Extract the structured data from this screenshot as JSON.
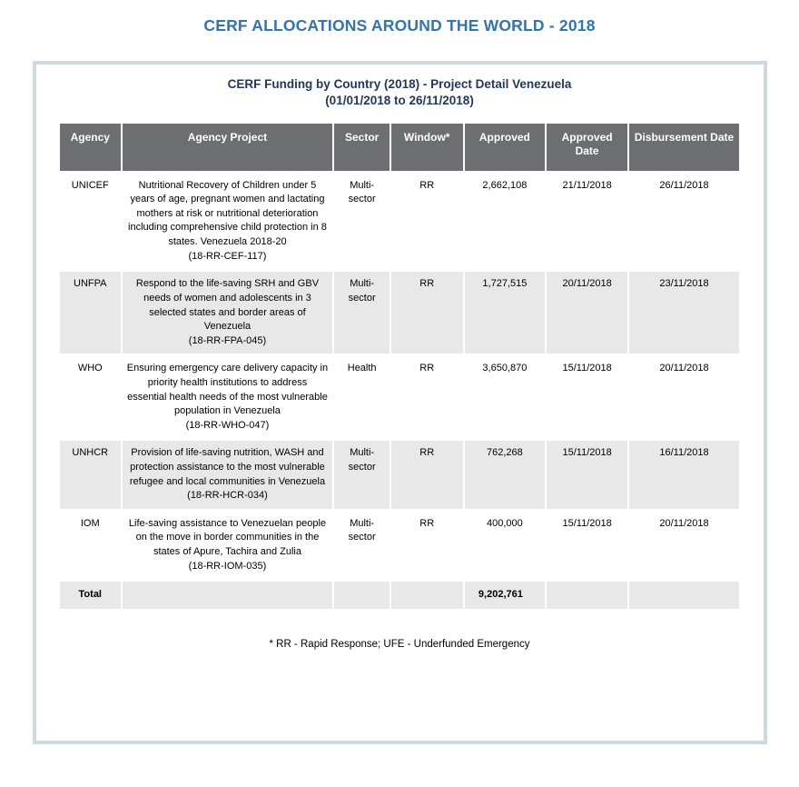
{
  "page_title": "CERF ALLOCATIONS AROUND THE WORLD - 2018",
  "report": {
    "title_line1": "CERF Funding by Country (2018) - Project Detail Venezuela",
    "title_line2": "(01/01/2018 to 26/11/2018)",
    "footnote": "* RR - Rapid Response; UFE - Underfunded Emergency"
  },
  "table": {
    "columns": [
      "Agency",
      "Agency Project",
      "Sector",
      "Window*",
      "Approved",
      "Approved Date",
      "Disbursement Date"
    ],
    "rows": [
      {
        "agency": "UNICEF",
        "project": "Nutritional Recovery of Children under 5 years of age, pregnant women and lactating mothers at risk or nutritional deterioration including comprehensive child protection in 8 states. Venezuela 2018-20",
        "code": "(18-RR-CEF-117)",
        "sector": "Multi-sector",
        "window": "RR",
        "approved": "2,662,108",
        "approved_date": "21/11/2018",
        "disbursement_date": "26/11/2018"
      },
      {
        "agency": "UNFPA",
        "project": "Respond to the life-saving SRH and GBV needs of women and adolescents in 3 selected states and border areas of Venezuela",
        "code": "(18-RR-FPA-045)",
        "sector": "Multi-sector",
        "window": "RR",
        "approved": "1,727,515",
        "approved_date": "20/11/2018",
        "disbursement_date": "23/11/2018"
      },
      {
        "agency": "WHO",
        "project": "Ensuring emergency care delivery capacity in priority health institutions to address essential health needs of the most vulnerable population in Venezuela",
        "code": "(18-RR-WHO-047)",
        "sector": "Health",
        "window": "RR",
        "approved": "3,650,870",
        "approved_date": "15/11/2018",
        "disbursement_date": "20/11/2018"
      },
      {
        "agency": "UNHCR",
        "project": "Provision of life-saving nutrition, WASH and protection assistance to the most vulnerable refugee and local communities in Venezuela",
        "code": "(18-RR-HCR-034)",
        "sector": "Multi-sector",
        "window": "RR",
        "approved": "762,268",
        "approved_date": "15/11/2018",
        "disbursement_date": "16/11/2018"
      },
      {
        "agency": "IOM",
        "project": "Life-saving assistance to Venezuelan people on the move in border communities in the states of Apure, Tachira and Zulia",
        "code": "(18-RR-IOM-035)",
        "sector": "Multi-sector",
        "window": "RR",
        "approved": "400,000",
        "approved_date": "15/11/2018",
        "disbursement_date": "20/11/2018"
      }
    ],
    "total": {
      "label": "Total",
      "approved": "9,202,761"
    }
  },
  "colors": {
    "page_title_blue": "#2e75b6",
    "report_title_navy": "#1f3864",
    "header_bg": "#6d6e71",
    "header_text": "#ffffff",
    "row_alt_bg": "#e8e8e8",
    "box_border": "#ccd9de"
  }
}
